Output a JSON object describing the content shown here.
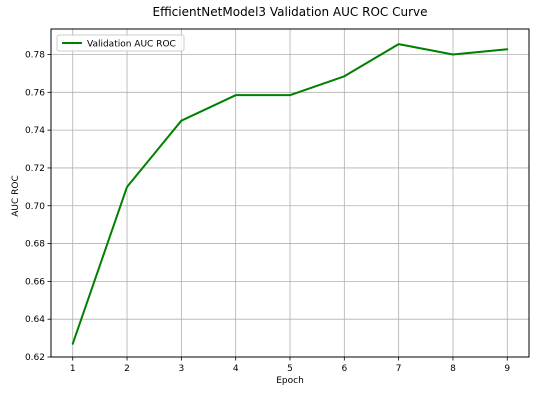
{
  "chart_data": {
    "type": "line",
    "title": "EfficientNetModel3 Validation AUC ROC Curve",
    "xlabel": "Epoch",
    "ylabel": "AUC ROC",
    "x": [
      1,
      2,
      3,
      4,
      5,
      6,
      7,
      8,
      9
    ],
    "xticks": [
      1,
      2,
      3,
      4,
      5,
      6,
      7,
      8,
      9
    ],
    "yticks": [
      0.62,
      0.64,
      0.66,
      0.68,
      0.7,
      0.72,
      0.74,
      0.76,
      0.78
    ],
    "ytick_labels": [
      "0.62",
      "0.64",
      "0.66",
      "0.68",
      "0.70",
      "0.72",
      "0.74",
      "0.76",
      "0.78"
    ],
    "xlim": [
      0.6,
      9.4
    ],
    "ylim": [
      0.62,
      0.7935
    ],
    "grid": true,
    "legend_position": "top-left",
    "series": [
      {
        "name": "Validation AUC ROC",
        "color": "#008000",
        "values": [
          0.627,
          0.71,
          0.745,
          0.7585,
          0.7585,
          0.7685,
          0.7855,
          0.78,
          0.7828
        ]
      }
    ]
  }
}
